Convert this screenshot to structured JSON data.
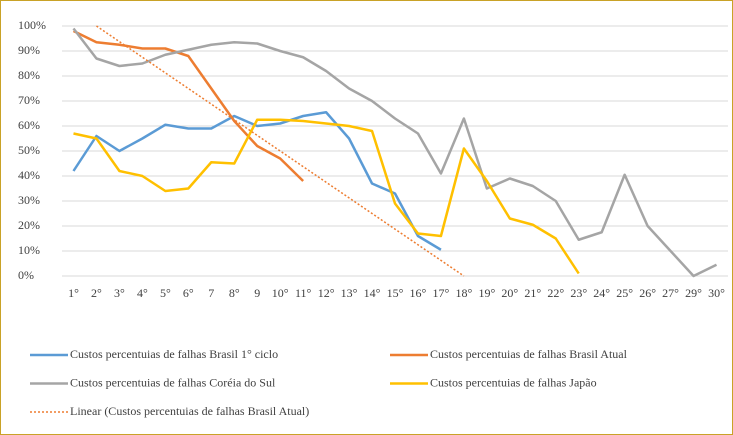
{
  "chart_data": {
    "type": "line",
    "categories": [
      "1°",
      "2°",
      "3°",
      "4°",
      "5°",
      "6°",
      "7",
      "8°",
      "9",
      "10°",
      "11°",
      "12°",
      "13°",
      "14°",
      "15°",
      "16°",
      "17°",
      "18°",
      "19°",
      "20°",
      "21°",
      "22°",
      "23°",
      "24°",
      "25°",
      "26°",
      "27°",
      "29°",
      "30°"
    ],
    "ylim": [
      0,
      100
    ],
    "yticks": [
      {
        "value": 0,
        "label": "0%"
      },
      {
        "value": 10,
        "label": "10%"
      },
      {
        "value": 20,
        "label": "20%"
      },
      {
        "value": 30,
        "label": "30%"
      },
      {
        "value": 40,
        "label": "40%"
      },
      {
        "value": 50,
        "label": "50%"
      },
      {
        "value": 60,
        "label": "60%"
      },
      {
        "value": 70,
        "label": "70%"
      },
      {
        "value": 80,
        "label": "80%"
      },
      {
        "value": 90,
        "label": "90%"
      },
      {
        "value": 100,
        "label": "100%"
      }
    ],
    "grid": true,
    "series": [
      {
        "name": "Custos percentuias de falhas Brasil 1° ciclo",
        "color": "#5b9bd5",
        "values": [
          42,
          56,
          50,
          55,
          60.5,
          59,
          59,
          64,
          60,
          61,
          64,
          65.5,
          55,
          37,
          33,
          16,
          10.5,
          null,
          null,
          null,
          null,
          null,
          null,
          null,
          null,
          null,
          null,
          null,
          null
        ]
      },
      {
        "name": "Custos percentuias de falhas Brasil Atual",
        "color": "#ed7d31",
        "values": [
          98,
          93.5,
          92.5,
          91,
          91,
          88,
          75,
          62,
          52,
          47,
          38,
          null,
          null,
          null,
          null,
          null,
          null,
          null,
          null,
          null,
          null,
          null,
          null,
          null,
          null,
          null,
          null,
          null,
          null
        ]
      },
      {
        "name": "Custos percentuias de falhas Coréia do Sul",
        "color": "#a5a5a5",
        "values": [
          99,
          87,
          84,
          85,
          88.5,
          90.5,
          92.5,
          93.5,
          93,
          90,
          87.5,
          82,
          75,
          70,
          63,
          57,
          41,
          63,
          35,
          39,
          36,
          30,
          14.5,
          17.5,
          40.5,
          20,
          10,
          0,
          4.5
        ]
      },
      {
        "name": "Custos percentuias de falhas Japão",
        "color": "#ffc000",
        "values": [
          57,
          55,
          42,
          40,
          34,
          35,
          45.5,
          45,
          62.5,
          62.5,
          62,
          61,
          60,
          58,
          29,
          17,
          16,
          51,
          38,
          23,
          20.5,
          15,
          1,
          null,
          null,
          null,
          null,
          null,
          null
        ]
      },
      {
        "name": "Linear (Custos percentuias de falhas Brasil Atual)",
        "color": "#ed7d31",
        "dashed": true,
        "values": [
          null,
          100,
          93.75,
          87.5,
          81.25,
          75,
          68.75,
          62.5,
          56.25,
          50,
          43.75,
          37.5,
          31.25,
          25,
          18.75,
          12.5,
          6.25,
          0,
          null,
          null,
          null,
          null,
          null,
          null,
          null,
          null,
          null,
          null,
          null
        ]
      }
    ]
  }
}
